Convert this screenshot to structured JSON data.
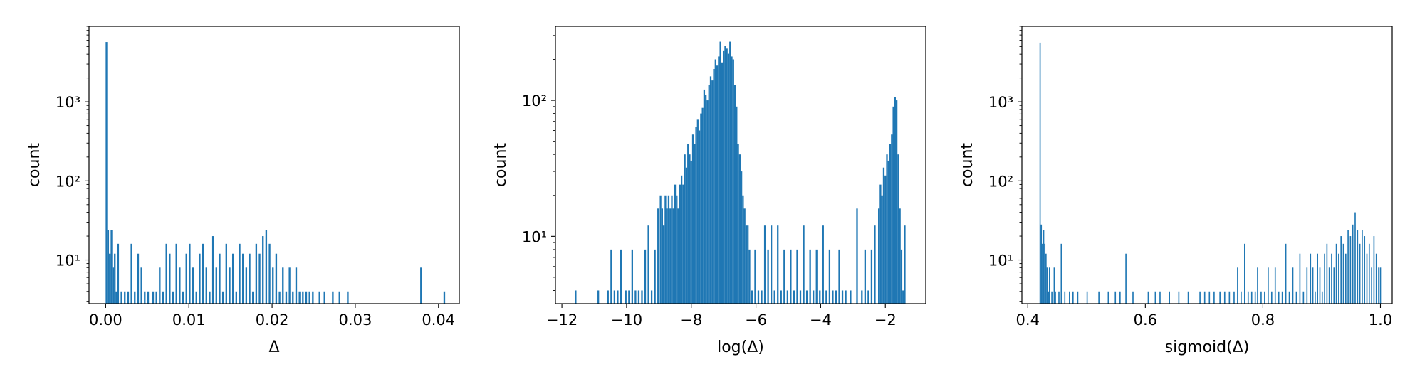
{
  "chart_data": [
    {
      "type": "histogram",
      "ylabel": "count",
      "xlabel": "Δ",
      "yscale": "log",
      "xlim": [
        -0.002,
        0.0425
      ],
      "ylim": [
        2.8,
        9000
      ],
      "xticks": [
        0.0,
        0.01,
        0.02,
        0.03,
        0.04
      ],
      "xtick_labels": [
        "0.00",
        "0.01",
        "0.02",
        "0.03",
        "0.04"
      ],
      "yticks": [
        10,
        100,
        1000
      ],
      "ytick_labels": [
        "10¹",
        "10²",
        "10³"
      ],
      "color": "#1f77b4",
      "bins": [
        [
          0.0,
          5700
        ],
        [
          0.0002,
          24
        ],
        [
          0.0004,
          12
        ],
        [
          0.0006,
          24
        ],
        [
          0.0008,
          8
        ],
        [
          0.001,
          12
        ],
        [
          0.0012,
          4
        ],
        [
          0.0014,
          16
        ],
        [
          0.0018,
          4
        ],
        [
          0.0022,
          4
        ],
        [
          0.0026,
          4
        ],
        [
          0.003,
          16
        ],
        [
          0.0034,
          4
        ],
        [
          0.0038,
          12
        ],
        [
          0.0042,
          8
        ],
        [
          0.0046,
          4
        ],
        [
          0.005,
          4
        ],
        [
          0.0056,
          4
        ],
        [
          0.006,
          4
        ],
        [
          0.0064,
          8
        ],
        [
          0.0068,
          4
        ],
        [
          0.0072,
          16
        ],
        [
          0.0076,
          12
        ],
        [
          0.008,
          4
        ],
        [
          0.0084,
          16
        ],
        [
          0.0088,
          8
        ],
        [
          0.0092,
          4
        ],
        [
          0.0096,
          12
        ],
        [
          0.01,
          16
        ],
        [
          0.0104,
          8
        ],
        [
          0.0108,
          4
        ],
        [
          0.0112,
          12
        ],
        [
          0.0116,
          16
        ],
        [
          0.012,
          8
        ],
        [
          0.0124,
          4
        ],
        [
          0.0128,
          20
        ],
        [
          0.0132,
          8
        ],
        [
          0.0136,
          12
        ],
        [
          0.014,
          4
        ],
        [
          0.0144,
          16
        ],
        [
          0.0148,
          8
        ],
        [
          0.0152,
          12
        ],
        [
          0.0156,
          4
        ],
        [
          0.016,
          16
        ],
        [
          0.0164,
          12
        ],
        [
          0.0168,
          8
        ],
        [
          0.0172,
          12
        ],
        [
          0.0176,
          4
        ],
        [
          0.018,
          16
        ],
        [
          0.0184,
          12
        ],
        [
          0.0188,
          20
        ],
        [
          0.0192,
          24
        ],
        [
          0.0196,
          16
        ],
        [
          0.02,
          8
        ],
        [
          0.0204,
          12
        ],
        [
          0.0208,
          4
        ],
        [
          0.0212,
          8
        ],
        [
          0.0216,
          4
        ],
        [
          0.022,
          8
        ],
        [
          0.0224,
          4
        ],
        [
          0.0228,
          8
        ],
        [
          0.0232,
          4
        ],
        [
          0.0236,
          4
        ],
        [
          0.024,
          4
        ],
        [
          0.0244,
          4
        ],
        [
          0.0248,
          4
        ],
        [
          0.0256,
          4
        ],
        [
          0.0262,
          4
        ],
        [
          0.0272,
          4
        ],
        [
          0.028,
          4
        ],
        [
          0.029,
          4
        ],
        [
          0.0378,
          8
        ],
        [
          0.0406,
          4
        ]
      ]
    },
    {
      "type": "histogram",
      "ylabel": "count",
      "xlabel": "log(Δ)",
      "yscale": "log",
      "xlim": [
        -12.2,
        -0.75
      ],
      "ylim": [
        3.2,
        350
      ],
      "xticks": [
        -12,
        -10,
        -8,
        -6,
        -4,
        -2
      ],
      "xtick_labels": [
        "−12",
        "−10",
        "−8",
        "−6",
        "−4",
        "−2"
      ],
      "yticks": [
        10,
        100
      ],
      "ytick_labels": [
        "10¹",
        "10²"
      ],
      "color": "#1f77b4",
      "bins": [
        [
          -11.6,
          4
        ],
        [
          -10.9,
          4
        ],
        [
          -10.6,
          4
        ],
        [
          -10.5,
          8
        ],
        [
          -10.4,
          4
        ],
        [
          -10.3,
          4
        ],
        [
          -10.2,
          8
        ],
        [
          -10.05,
          4
        ],
        [
          -9.95,
          4
        ],
        [
          -9.85,
          8
        ],
        [
          -9.75,
          4
        ],
        [
          -9.65,
          4
        ],
        [
          -9.55,
          4
        ],
        [
          -9.45,
          8
        ],
        [
          -9.35,
          12
        ],
        [
          -9.25,
          4
        ],
        [
          -9.15,
          8
        ],
        [
          -9.05,
          16
        ],
        [
          -8.975,
          20
        ],
        [
          -8.925,
          16
        ],
        [
          -8.875,
          12
        ],
        [
          -8.825,
          20
        ],
        [
          -8.775,
          16
        ],
        [
          -8.725,
          20
        ],
        [
          -8.675,
          16
        ],
        [
          -8.625,
          20
        ],
        [
          -8.575,
          16
        ],
        [
          -8.525,
          24
        ],
        [
          -8.475,
          20
        ],
        [
          -8.425,
          16
        ],
        [
          -8.375,
          24
        ],
        [
          -8.325,
          28
        ],
        [
          -8.275,
          24
        ],
        [
          -8.225,
          40
        ],
        [
          -8.175,
          32
        ],
        [
          -8.125,
          48
        ],
        [
          -8.075,
          40
        ],
        [
          -8.025,
          36
        ],
        [
          -7.975,
          56
        ],
        [
          -7.925,
          48
        ],
        [
          -7.875,
          64
        ],
        [
          -7.825,
          72
        ],
        [
          -7.775,
          60
        ],
        [
          -7.725,
          80
        ],
        [
          -7.675,
          88
        ],
        [
          -7.625,
          120
        ],
        [
          -7.575,
          110
        ],
        [
          -7.525,
          100
        ],
        [
          -7.475,
          130
        ],
        [
          -7.425,
          150
        ],
        [
          -7.375,
          140
        ],
        [
          -7.325,
          170
        ],
        [
          -7.275,
          200
        ],
        [
          -7.225,
          180
        ],
        [
          -7.175,
          210
        ],
        [
          -7.125,
          270
        ],
        [
          -7.075,
          190
        ],
        [
          -7.025,
          230
        ],
        [
          -6.975,
          250
        ],
        [
          -6.925,
          240
        ],
        [
          -6.875,
          220
        ],
        [
          -6.825,
          270
        ],
        [
          -6.775,
          210
        ],
        [
          -6.725,
          200
        ],
        [
          -6.675,
          130
        ],
        [
          -6.625,
          90
        ],
        [
          -6.575,
          48
        ],
        [
          -6.525,
          40
        ],
        [
          -6.475,
          30
        ],
        [
          -6.425,
          20
        ],
        [
          -6.375,
          16
        ],
        [
          -6.325,
          12
        ],
        [
          -6.275,
          12
        ],
        [
          -6.225,
          8
        ],
        [
          -6.15,
          4
        ],
        [
          -6.05,
          8
        ],
        [
          -5.95,
          4
        ],
        [
          -5.85,
          4
        ],
        [
          -5.75,
          12
        ],
        [
          -5.65,
          8
        ],
        [
          -5.55,
          12
        ],
        [
          -5.45,
          4
        ],
        [
          -5.35,
          12
        ],
        [
          -5.25,
          4
        ],
        [
          -5.15,
          8
        ],
        [
          -5.05,
          4
        ],
        [
          -4.95,
          8
        ],
        [
          -4.85,
          4
        ],
        [
          -4.75,
          8
        ],
        [
          -4.65,
          4
        ],
        [
          -4.55,
          12
        ],
        [
          -4.45,
          4
        ],
        [
          -4.35,
          8
        ],
        [
          -4.25,
          4
        ],
        [
          -4.15,
          8
        ],
        [
          -4.05,
          4
        ],
        [
          -3.95,
          12
        ],
        [
          -3.85,
          4
        ],
        [
          -3.75,
          8
        ],
        [
          -3.65,
          4
        ],
        [
          -3.55,
          4
        ],
        [
          -3.45,
          8
        ],
        [
          -3.35,
          4
        ],
        [
          -3.25,
          4
        ],
        [
          -3.1,
          4
        ],
        [
          -2.9,
          16
        ],
        [
          -2.75,
          4
        ],
        [
          -2.65,
          8
        ],
        [
          -2.55,
          4
        ],
        [
          -2.45,
          8
        ],
        [
          -2.35,
          12
        ],
        [
          -2.225,
          16
        ],
        [
          -2.175,
          24
        ],
        [
          -2.125,
          20
        ],
        [
          -2.075,
          32
        ],
        [
          -2.025,
          28
        ],
        [
          -1.975,
          40
        ],
        [
          -1.925,
          36
        ],
        [
          -1.875,
          48
        ],
        [
          -1.825,
          56
        ],
        [
          -1.775,
          90
        ],
        [
          -1.725,
          105
        ],
        [
          -1.675,
          100
        ],
        [
          -1.625,
          40
        ],
        [
          -1.575,
          16
        ],
        [
          -1.525,
          8
        ],
        [
          -1.475,
          4
        ],
        [
          -1.425,
          12
        ]
      ]
    },
    {
      "type": "histogram",
      "ylabel": "count",
      "xlabel": "sigmoid(Δ)",
      "yscale": "log",
      "xlim": [
        0.39,
        1.02
      ],
      "ylim": [
        2.8,
        9000
      ],
      "xticks": [
        0.4,
        0.6,
        0.8,
        1.0
      ],
      "xtick_labels": [
        "0.4",
        "0.6",
        "0.8",
        "1.0"
      ],
      "yticks": [
        10,
        100,
        1000
      ],
      "ytick_labels": [
        "10¹",
        "10²",
        "10³"
      ],
      "color": "#1f77b4",
      "bins": [
        [
          0.42,
          5600
        ],
        [
          0.422,
          28
        ],
        [
          0.424,
          16
        ],
        [
          0.426,
          24
        ],
        [
          0.428,
          16
        ],
        [
          0.43,
          12
        ],
        [
          0.432,
          8
        ],
        [
          0.434,
          4
        ],
        [
          0.436,
          8
        ],
        [
          0.44,
          4
        ],
        [
          0.444,
          8
        ],
        [
          0.446,
          4
        ],
        [
          0.452,
          4
        ],
        [
          0.456,
          16
        ],
        [
          0.462,
          4
        ],
        [
          0.47,
          4
        ],
        [
          0.476,
          4
        ],
        [
          0.484,
          4
        ],
        [
          0.5,
          4
        ],
        [
          0.52,
          4
        ],
        [
          0.536,
          4
        ],
        [
          0.548,
          4
        ],
        [
          0.556,
          4
        ],
        [
          0.566,
          12
        ],
        [
          0.578,
          4
        ],
        [
          0.604,
          4
        ],
        [
          0.616,
          4
        ],
        [
          0.624,
          4
        ],
        [
          0.64,
          4
        ],
        [
          0.656,
          4
        ],
        [
          0.672,
          4
        ],
        [
          0.692,
          4
        ],
        [
          0.7,
          4
        ],
        [
          0.708,
          4
        ],
        [
          0.716,
          4
        ],
        [
          0.726,
          4
        ],
        [
          0.734,
          4
        ],
        [
          0.742,
          4
        ],
        [
          0.75,
          4
        ],
        [
          0.756,
          8
        ],
        [
          0.762,
          4
        ],
        [
          0.768,
          16
        ],
        [
          0.774,
          4
        ],
        [
          0.78,
          4
        ],
        [
          0.786,
          4
        ],
        [
          0.79,
          8
        ],
        [
          0.796,
          4
        ],
        [
          0.802,
          4
        ],
        [
          0.808,
          8
        ],
        [
          0.814,
          4
        ],
        [
          0.82,
          8
        ],
        [
          0.826,
          4
        ],
        [
          0.832,
          4
        ],
        [
          0.838,
          16
        ],
        [
          0.844,
          4
        ],
        [
          0.85,
          8
        ],
        [
          0.856,
          4
        ],
        [
          0.862,
          12
        ],
        [
          0.868,
          4
        ],
        [
          0.874,
          8
        ],
        [
          0.88,
          12
        ],
        [
          0.884,
          8
        ],
        [
          0.888,
          4
        ],
        [
          0.892,
          12
        ],
        [
          0.896,
          8
        ],
        [
          0.9,
          4
        ],
        [
          0.904,
          12
        ],
        [
          0.908,
          16
        ],
        [
          0.912,
          8
        ],
        [
          0.916,
          12
        ],
        [
          0.92,
          8
        ],
        [
          0.924,
          16
        ],
        [
          0.928,
          12
        ],
        [
          0.932,
          20
        ],
        [
          0.936,
          16
        ],
        [
          0.94,
          12
        ],
        [
          0.944,
          24
        ],
        [
          0.948,
          20
        ],
        [
          0.952,
          28
        ],
        [
          0.956,
          40
        ],
        [
          0.96,
          24
        ],
        [
          0.964,
          16
        ],
        [
          0.968,
          24
        ],
        [
          0.972,
          20
        ],
        [
          0.976,
          12
        ],
        [
          0.98,
          16
        ],
        [
          0.984,
          8
        ],
        [
          0.988,
          20
        ],
        [
          0.992,
          12
        ],
        [
          0.996,
          8
        ],
        [
          0.999,
          8
        ]
      ]
    }
  ]
}
